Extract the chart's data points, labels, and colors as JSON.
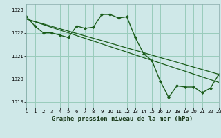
{
  "title": "Graphe pression niveau de la mer (hPa)",
  "bg_color": "#cfe8e8",
  "grid_color": "#99ccbb",
  "line_color": "#1a5c1a",
  "xlim": [
    0,
    23
  ],
  "ylim": [
    1018.75,
    1023.25
  ],
  "yticks": [
    1019,
    1020,
    1021,
    1022,
    1023
  ],
  "xticks": [
    0,
    1,
    2,
    3,
    4,
    5,
    6,
    7,
    8,
    9,
    10,
    11,
    12,
    13,
    14,
    15,
    16,
    17,
    18,
    19,
    20,
    21,
    22,
    23
  ],
  "series": [
    {
      "x": [
        0,
        23
      ],
      "y": [
        1022.6,
        1020.2
      ],
      "marker": null,
      "lw": 0.9
    },
    {
      "x": [
        0,
        23
      ],
      "y": [
        1022.6,
        1019.85
      ],
      "marker": null,
      "lw": 0.9
    },
    {
      "x": [
        0,
        1,
        2,
        3,
        4,
        5,
        6,
        7,
        8,
        9,
        10,
        11,
        12,
        13,
        14,
        15,
        16,
        17,
        18,
        19,
        20,
        21,
        22,
        23
      ],
      "y": [
        1022.7,
        1022.3,
        1022.0,
        1022.0,
        1021.9,
        1021.8,
        1022.3,
        1022.2,
        1022.25,
        1022.8,
        1022.8,
        1022.65,
        1022.7,
        1021.8,
        1021.1,
        1020.8,
        1019.9,
        1019.2,
        1019.7,
        1019.65,
        1019.65,
        1019.4,
        1019.6,
        1020.2
      ],
      "marker": "D",
      "ms": 2.0,
      "lw": 1.0
    }
  ],
  "title_fontsize": 6.5,
  "tick_fontsize": 5.0
}
